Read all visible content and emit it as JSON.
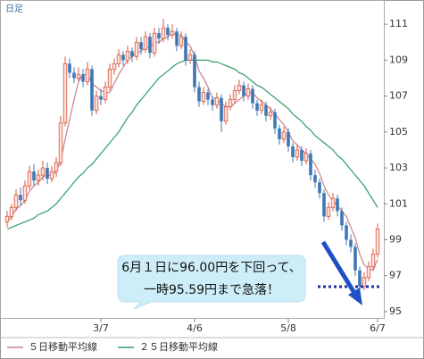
{
  "chart_data": {
    "type": "candlestick",
    "title": "日足",
    "categories": [
      null,
      null,
      null,
      null,
      null,
      null,
      null,
      null,
      null,
      null,
      null,
      null,
      null,
      null,
      null,
      null,
      null,
      null,
      null,
      null,
      null,
      "3/7",
      null,
      null,
      null,
      null,
      null,
      null,
      null,
      null,
      null,
      null,
      null,
      null,
      null,
      null,
      null,
      null,
      null,
      null,
      null,
      null,
      "4/6",
      null,
      null,
      null,
      null,
      null,
      null,
      null,
      null,
      null,
      null,
      null,
      null,
      null,
      null,
      null,
      null,
      null,
      null,
      null,
      null,
      "5/8",
      null,
      null,
      null,
      null,
      null,
      null,
      null,
      null,
      null,
      null,
      null,
      null,
      null,
      null,
      null,
      null,
      null,
      null,
      null,
      "6/7"
    ],
    "candles": [
      [
        100.0,
        100.6,
        99.7,
        100.3
      ],
      [
        100.3,
        101.0,
        100.1,
        100.8
      ],
      [
        100.8,
        101.8,
        100.6,
        101.5
      ],
      [
        101.5,
        101.9,
        100.9,
        101.2
      ],
      [
        101.2,
        102.3,
        101.0,
        102.0
      ],
      [
        102.0,
        103.1,
        101.8,
        102.8
      ],
      [
        102.8,
        103.2,
        102.0,
        102.3
      ],
      [
        102.3,
        102.9,
        102.0,
        102.6
      ],
      [
        102.6,
        103.4,
        102.3,
        103.0
      ],
      [
        103.0,
        103.3,
        102.1,
        102.4
      ],
      [
        102.4,
        103.1,
        102.2,
        102.8
      ],
      [
        102.8,
        103.6,
        102.5,
        103.3
      ],
      [
        103.3,
        105.9,
        103.1,
        105.5
      ],
      [
        105.5,
        109.2,
        105.3,
        108.8
      ],
      [
        108.8,
        109.1,
        108.0,
        108.3
      ],
      [
        108.3,
        108.6,
        107.7,
        108.0
      ],
      [
        108.0,
        108.6,
        107.8,
        108.2
      ],
      [
        108.2,
        108.5,
        107.5,
        107.8
      ],
      [
        107.8,
        108.9,
        107.6,
        108.5
      ],
      [
        108.5,
        108.7,
        105.9,
        106.2
      ],
      [
        106.2,
        107.3,
        106.0,
        107.0
      ],
      [
        107.0,
        107.4,
        106.5,
        106.8
      ],
      [
        106.8,
        107.8,
        106.6,
        107.5
      ],
      [
        107.5,
        108.8,
        107.3,
        108.5
      ],
      [
        108.5,
        109.1,
        108.2,
        108.8
      ],
      [
        108.8,
        109.6,
        108.6,
        109.3
      ],
      [
        109.3,
        109.5,
        108.7,
        109.0
      ],
      [
        109.0,
        109.8,
        108.8,
        109.5
      ],
      [
        109.5,
        109.7,
        108.9,
        109.2
      ],
      [
        109.2,
        110.3,
        109.0,
        110.0
      ],
      [
        110.0,
        110.3,
        109.3,
        109.6
      ],
      [
        109.6,
        110.6,
        109.4,
        110.3
      ],
      [
        110.3,
        110.5,
        109.1,
        109.4
      ],
      [
        109.4,
        110.8,
        109.2,
        110.5
      ],
      [
        110.5,
        110.8,
        109.9,
        110.2
      ],
      [
        110.2,
        111.3,
        110.0,
        110.8
      ],
      [
        110.8,
        111.0,
        110.1,
        110.4
      ],
      [
        110.4,
        111.0,
        110.2,
        110.6
      ],
      [
        110.6,
        110.8,
        109.5,
        109.8
      ],
      [
        109.8,
        110.6,
        109.6,
        110.3
      ],
      [
        110.3,
        110.5,
        108.7,
        109.0
      ],
      [
        109.0,
        109.6,
        108.8,
        109.3
      ],
      [
        109.3,
        109.5,
        107.2,
        107.5
      ],
      [
        107.5,
        107.8,
        106.4,
        106.7
      ],
      [
        106.7,
        107.5,
        106.5,
        107.2
      ],
      [
        107.2,
        107.4,
        106.5,
        106.8
      ],
      [
        106.8,
        107.0,
        106.2,
        106.5
      ],
      [
        106.5,
        107.2,
        106.3,
        106.9
      ],
      [
        106.9,
        107.1,
        105.0,
        105.6
      ],
      [
        105.6,
        106.7,
        105.4,
        106.4
      ],
      [
        106.4,
        107.1,
        106.2,
        106.8
      ],
      [
        106.8,
        107.6,
        106.6,
        107.3
      ],
      [
        107.3,
        107.9,
        107.1,
        107.6
      ],
      [
        107.6,
        107.8,
        106.7,
        107.0
      ],
      [
        107.0,
        107.7,
        106.8,
        107.4
      ],
      [
        107.4,
        107.6,
        106.3,
        106.6
      ],
      [
        106.6,
        106.8,
        105.9,
        106.2
      ],
      [
        106.2,
        106.8,
        106.0,
        106.5
      ],
      [
        106.5,
        106.7,
        105.6,
        105.9
      ],
      [
        105.9,
        106.4,
        105.7,
        106.1
      ],
      [
        106.1,
        106.3,
        104.9,
        105.2
      ],
      [
        105.2,
        105.4,
        104.3,
        104.6
      ],
      [
        104.6,
        105.3,
        104.4,
        105.0
      ],
      [
        105.0,
        105.2,
        103.9,
        104.2
      ],
      [
        104.2,
        104.4,
        103.3,
        103.6
      ],
      [
        103.6,
        104.3,
        103.4,
        104.0
      ],
      [
        104.0,
        104.2,
        103.1,
        103.4
      ],
      [
        103.4,
        104.1,
        103.2,
        103.8
      ],
      [
        103.8,
        104.0,
        102.3,
        102.6
      ],
      [
        102.6,
        102.9,
        101.9,
        102.2
      ],
      [
        102.2,
        102.4,
        101.3,
        101.6
      ],
      [
        101.6,
        101.8,
        100.0,
        100.3
      ],
      [
        100.3,
        101.1,
        100.1,
        100.8
      ],
      [
        100.8,
        101.6,
        100.6,
        101.3
      ],
      [
        101.3,
        101.5,
        100.3,
        100.6
      ],
      [
        100.6,
        100.8,
        99.5,
        99.8
      ],
      [
        99.8,
        100.0,
        98.7,
        99.0
      ],
      [
        99.0,
        99.3,
        98.3,
        98.6
      ],
      [
        98.6,
        98.8,
        97.0,
        97.3
      ],
      [
        97.3,
        97.5,
        95.59,
        96.4
      ],
      [
        96.4,
        97.2,
        96.2,
        96.9
      ],
      [
        96.9,
        97.8,
        96.7,
        97.5
      ],
      [
        97.5,
        98.5,
        97.3,
        98.2
      ],
      [
        98.2,
        99.9,
        98.0,
        99.6
      ]
    ],
    "up_color": "#d9543f",
    "down_color": "#3d78b5",
    "series": [
      {
        "name": "５日移動平均線",
        "color": "#c9828a",
        "values": [
          100.0,
          100.3,
          100.7,
          100.9,
          101.2,
          101.7,
          102.0,
          102.2,
          102.5,
          102.6,
          102.6,
          102.8,
          103.4,
          104.6,
          105.7,
          106.8,
          107.8,
          108.2,
          108.2,
          107.7,
          107.5,
          107.3,
          107.2,
          107.2,
          107.7,
          108.2,
          108.6,
          109.0,
          109.2,
          109.4,
          109.5,
          109.7,
          109.7,
          110.0,
          110.0,
          110.2,
          110.3,
          110.5,
          110.4,
          110.4,
          110.0,
          109.8,
          109.2,
          108.4,
          108.0,
          107.5,
          106.9,
          106.8,
          106.6,
          106.4,
          106.4,
          106.6,
          106.8,
          107.0,
          107.2,
          107.2,
          106.9,
          106.7,
          106.5,
          106.3,
          106.0,
          105.7,
          105.4,
          105.0,
          104.5,
          104.3,
          104.0,
          103.8,
          103.5,
          103.2,
          102.7,
          102.0,
          101.5,
          101.2,
          100.9,
          100.6,
          100.3,
          99.7,
          99.1,
          98.2,
          97.6,
          97.4,
          97.3,
          97.9
        ]
      },
      {
        "name": "２５日移動平均線",
        "color": "#2e9e62",
        "values": [
          99.6,
          99.7,
          99.8,
          99.9,
          100.0,
          100.1,
          100.2,
          100.4,
          100.5,
          100.6,
          100.8,
          101.0,
          101.3,
          101.6,
          101.9,
          102.2,
          102.5,
          102.7,
          103.0,
          103.2,
          103.5,
          103.8,
          104.1,
          104.4,
          104.7,
          105.0,
          105.4,
          105.8,
          106.1,
          106.5,
          106.8,
          107.1,
          107.4,
          107.7,
          108.0,
          108.2,
          108.4,
          108.6,
          108.8,
          108.9,
          109.0,
          109.0,
          109.0,
          109.0,
          109.0,
          109.0,
          108.9,
          108.9,
          108.8,
          108.7,
          108.6,
          108.5,
          108.3,
          108.2,
          108.0,
          107.8,
          107.6,
          107.5,
          107.3,
          107.1,
          106.9,
          106.7,
          106.5,
          106.3,
          106.0,
          105.8,
          105.6,
          105.3,
          105.1,
          104.8,
          104.6,
          104.4,
          104.2,
          104.0,
          103.7,
          103.5,
          103.2,
          102.9,
          102.6,
          102.3,
          102.0,
          101.6,
          101.2,
          100.8
        ]
      }
    ],
    "ylim": [
      94.6,
      112.1
    ],
    "yticks": [
      95,
      97,
      99,
      101,
      103,
      105,
      107,
      109,
      111
    ],
    "annotation": [
      "6月１日に96.00円を下回って、",
      "一時95.59円まで急落！"
    ],
    "legend": "bottom"
  }
}
